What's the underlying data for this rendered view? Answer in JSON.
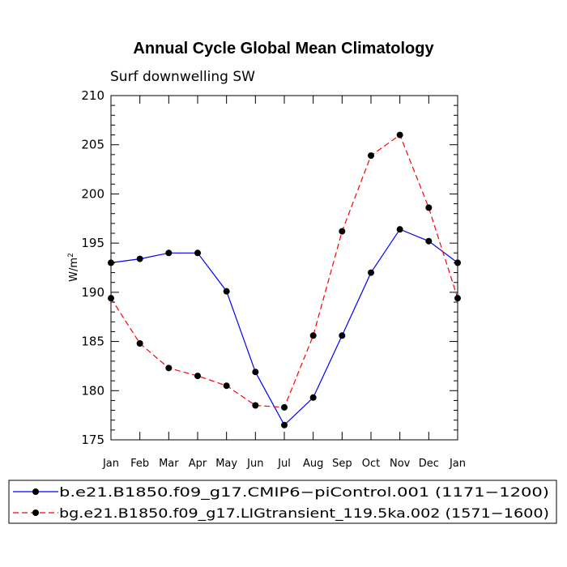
{
  "chart_data": {
    "type": "line",
    "title": "Annual Cycle Global Mean Climatology",
    "subtitle": "Surf downwelling SW",
    "ylabel": "W/m",
    "ylabel_sup": "2",
    "categories": [
      "Jan",
      "Feb",
      "Mar",
      "Apr",
      "May",
      "Jun",
      "Jul",
      "Aug",
      "Sep",
      "Oct",
      "Nov",
      "Dec",
      "Jan"
    ],
    "ylim": [
      175,
      210
    ],
    "yticks": [
      175,
      180,
      185,
      190,
      195,
      200,
      205,
      210
    ],
    "ytick_labels": [
      "175",
      "180",
      "185",
      "190",
      "195",
      "200",
      "205",
      "210"
    ],
    "legend_position": "bottom",
    "series": [
      {
        "name": "b.e21.B1850.f09_g17.CMIP6−piControl.001 (1171−1200)",
        "color": "#0000ff",
        "line_style": "solid",
        "values": [
          193.0,
          193.4,
          194.0,
          194.0,
          190.1,
          181.9,
          176.5,
          179.3,
          185.6,
          192.0,
          196.4,
          195.2,
          193.0
        ]
      },
      {
        "name": "bg.e21.B1850.f09_g17.LIGtransient_119.5ka.002 (1571−1600)",
        "color": "#ff0000",
        "line_style": "dashed",
        "values": [
          189.4,
          184.8,
          182.3,
          181.5,
          180.5,
          178.5,
          178.3,
          185.6,
          196.2,
          203.9,
          206.0,
          198.6,
          189.4
        ]
      }
    ]
  }
}
